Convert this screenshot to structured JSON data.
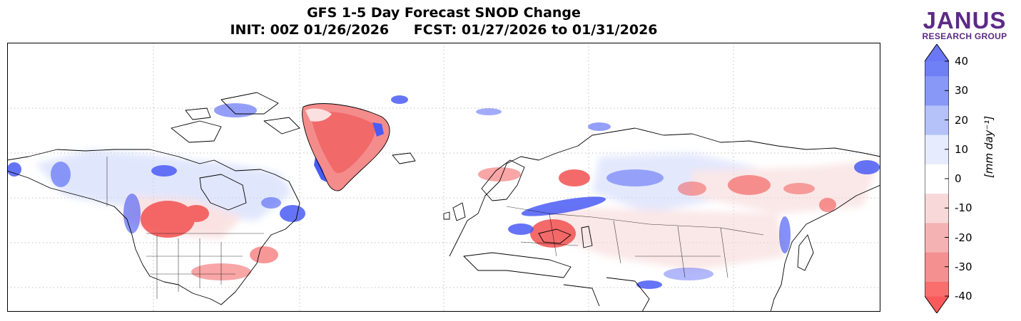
{
  "title": {
    "line1": "GFS 1-5 Day Forecast SNOD Change",
    "init": "INIT: 00Z 01/26/2026",
    "fcst": "FCST: 01/27/2026 to 01/31/2026"
  },
  "logo": {
    "name": "JANUS",
    "subtitle": "RESEARCH GROUP"
  },
  "colorbar": {
    "unit_label": "[mm day⁻¹]",
    "ticks": [
      "40",
      "30",
      "20",
      "10",
      "0",
      "-10",
      "-20",
      "-30",
      "-40"
    ],
    "levels": [
      -40,
      -30,
      -20,
      -10,
      0,
      10,
      20,
      30,
      40
    ]
  },
  "colors": {
    "snow_gain": "#4a5cf5",
    "snow_loss": "#f25050",
    "coastline": "#000000",
    "grid": "#bbbbbb"
  }
}
